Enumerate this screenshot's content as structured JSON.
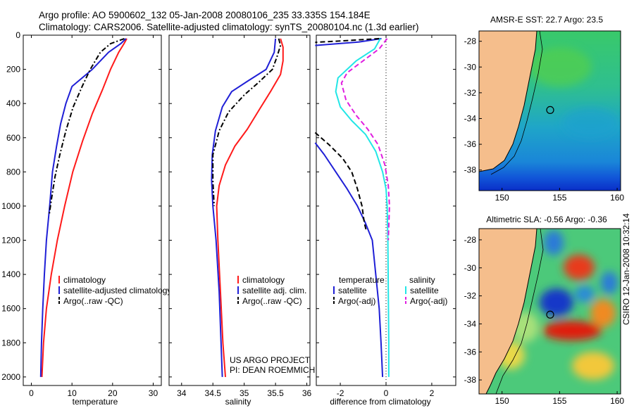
{
  "header": {
    "title_line1": "Argo profile: AO 5900602_132 05-Jan-2008 20080106_235 33.335S 154.184E",
    "title_line2": "Climatology: CARS2006. Satellite-adjusted climatology: synTS_20080104.nc (1.3d earlier)"
  },
  "project_note": {
    "line1": "US ARGO PROJECT",
    "line2": "PI: DEAN ROEMMICH"
  },
  "side_label": "CSIRO 12-Jan-2008 10:32:14",
  "colors": {
    "red": "#ff1a1a",
    "blue": "#1f1fd6",
    "black": "#000000",
    "cyan": "#22e6e6",
    "magenta": "#e01ee0",
    "land": "#f5be8c"
  },
  "chart_data": [
    {
      "type": "line",
      "id": "temperature",
      "xlabel": "temperature",
      "ylabel": "",
      "xlim": [
        -2,
        32
      ],
      "ylim": [
        2050,
        0
      ],
      "xticks": [
        "0",
        "10",
        "20",
        "30"
      ],
      "xtick_values": [
        0,
        10,
        20,
        30
      ],
      "yticks": [
        "0",
        "200",
        "400",
        "600",
        "800",
        "1000",
        "1200",
        "1400",
        "1600",
        "1800",
        "2000"
      ],
      "ytick_values": [
        0,
        200,
        400,
        600,
        800,
        1000,
        1200,
        1400,
        1600,
        1800,
        2000
      ],
      "legend": [
        "climatology",
        "satellite-adjusted climatology",
        "Argo(..raw -QC)"
      ],
      "series": [
        {
          "name": "climatology",
          "color": "red",
          "dash": "",
          "points": [
            [
              23.5,
              20
            ],
            [
              22.8,
              50
            ],
            [
              21.5,
              100
            ],
            [
              19.5,
              200
            ],
            [
              17.5,
              320
            ],
            [
              15,
              460
            ],
            [
              12.6,
              620
            ],
            [
              10.2,
              800
            ],
            [
              8.2,
              1000
            ],
            [
              6.4,
              1200
            ],
            [
              4.9,
              1400
            ],
            [
              3.7,
              1600
            ],
            [
              3,
              1800
            ],
            [
              2.6,
              2000
            ]
          ]
        },
        {
          "name": "satellite-adjusted climatology",
          "color": "blue",
          "dash": "",
          "points": [
            [
              23.3,
              20
            ],
            [
              22,
              50
            ],
            [
              19,
              100
            ],
            [
              15,
              200
            ],
            [
              10,
              300
            ],
            [
              8.5,
              400
            ],
            [
              7.2,
              520
            ],
            [
              6.2,
              650
            ],
            [
              5.2,
              800
            ],
            [
              4.5,
              1000
            ],
            [
              3.7,
              1200
            ],
            [
              3.2,
              1400
            ],
            [
              2.8,
              1600
            ],
            [
              2.5,
              1800
            ],
            [
              2.3,
              2000
            ]
          ]
        },
        {
          "name": "Argo(..raw -QC)",
          "color": "black",
          "dash": "7 3 2 3",
          "points": [
            [
              22.9,
              20
            ],
            [
              19.5,
              50
            ],
            [
              17,
              100
            ],
            [
              14.5,
              200
            ],
            [
              12.5,
              300
            ],
            [
              10.3,
              420
            ],
            [
              8.5,
              560
            ],
            [
              7,
              700
            ],
            [
              5.8,
              830
            ],
            [
              5,
              950
            ],
            [
              4.4,
              1050
            ]
          ]
        }
      ]
    },
    {
      "type": "line",
      "id": "salinity",
      "xlabel": "salinity",
      "ylabel": "",
      "xlim": [
        33.8,
        36.05
      ],
      "ylim": [
        2050,
        0
      ],
      "xticks": [
        "34",
        "34.5",
        "35",
        "35.5",
        "36"
      ],
      "xtick_values": [
        34,
        34.5,
        35,
        35.5,
        36
      ],
      "legend": [
        "climatology",
        "satellite adj. clim.",
        "Argo(..raw -QC)"
      ],
      "series": [
        {
          "name": "climatology",
          "color": "red",
          "dash": "",
          "points": [
            [
              35.58,
              20
            ],
            [
              35.62,
              70
            ],
            [
              35.62,
              150
            ],
            [
              35.58,
              230
            ],
            [
              35.42,
              330
            ],
            [
              35.25,
              430
            ],
            [
              35.05,
              550
            ],
            [
              34.85,
              650
            ],
            [
              34.7,
              760
            ],
            [
              34.6,
              880
            ],
            [
              34.56,
              1000
            ],
            [
              34.58,
              1200
            ],
            [
              34.62,
              1500
            ],
            [
              34.66,
              1800
            ],
            [
              34.7,
              2000
            ]
          ]
        },
        {
          "name": "satellite adj. clim.",
          "color": "blue",
          "dash": "",
          "points": [
            [
              35.5,
              20
            ],
            [
              35.48,
              100
            ],
            [
              35.35,
              200
            ],
            [
              35.05,
              270
            ],
            [
              34.8,
              330
            ],
            [
              34.65,
              420
            ],
            [
              34.54,
              560
            ],
            [
              34.49,
              700
            ],
            [
              34.48,
              850
            ],
            [
              34.5,
              1000
            ],
            [
              34.55,
              1200
            ],
            [
              34.6,
              1500
            ],
            [
              34.63,
              1800
            ],
            [
              34.65,
              2000
            ]
          ]
        },
        {
          "name": "Argo(..raw -QC)",
          "color": "black",
          "dash": "7 3 2 3",
          "points": [
            [
              35.55,
              20
            ],
            [
              35.58,
              60
            ],
            [
              35.52,
              130
            ],
            [
              35.45,
              200
            ],
            [
              35.22,
              280
            ],
            [
              35,
              350
            ],
            [
              34.75,
              450
            ],
            [
              34.6,
              560
            ],
            [
              34.5,
              700
            ],
            [
              34.5,
              850
            ],
            [
              34.52,
              1000
            ]
          ]
        }
      ]
    },
    {
      "type": "line",
      "id": "difference",
      "xlabel": "difference from climatology",
      "ylabel": "",
      "xlim": [
        -3.05,
        3.05
      ],
      "ylim": [
        2050,
        0
      ],
      "xticks": [
        "-2",
        "0",
        "2"
      ],
      "xtick_values": [
        -2,
        0,
        2
      ],
      "legend_headers": [
        "temperature",
        "salinity"
      ],
      "legend": [
        "satellite",
        "Argo(-adj)",
        "satellite",
        "Argo(-adj)"
      ],
      "series": [
        {
          "name": "temperature satellite (top)",
          "color": "blue",
          "dash": "",
          "points": [
            [
              -0.2,
              20
            ],
            [
              -1.2,
              40
            ],
            [
              -3.1,
              60
            ]
          ]
        },
        {
          "name": "temperature Argo (top)",
          "color": "black",
          "dash": "7 4",
          "points": [
            [
              -0.3,
              20
            ],
            [
              -1.5,
              30
            ],
            [
              -3.1,
              42
            ]
          ]
        },
        {
          "name": "temperature satellite",
          "color": "blue",
          "dash": "",
          "points": [
            [
              -3.1,
              630
            ],
            [
              -2.7,
              700
            ],
            [
              -2.2,
              800
            ],
            [
              -1.7,
              900
            ],
            [
              -1.25,
              1000
            ],
            [
              -0.9,
              1100
            ],
            [
              -0.6,
              1200
            ],
            [
              -0.45,
              1400
            ],
            [
              -0.3,
              1600
            ],
            [
              -0.22,
              1800
            ],
            [
              -0.15,
              2000
            ]
          ]
        },
        {
          "name": "temperature Argo",
          "color": "black",
          "dash": "7 4",
          "points": [
            [
              -3.1,
              570
            ],
            [
              -2.5,
              640
            ],
            [
              -1.9,
              720
            ],
            [
              -1.5,
              800
            ],
            [
              -1.25,
              900
            ],
            [
              -1.05,
              1000
            ],
            [
              -0.95,
              1100
            ],
            [
              -0.85,
              1150
            ]
          ]
        },
        {
          "name": "salinity satellite",
          "color": "cyan",
          "dash": "",
          "points": [
            [
              -0.25,
              20
            ],
            [
              -0.5,
              80
            ],
            [
              -1.3,
              150
            ],
            [
              -2.1,
              250
            ],
            [
              -2.2,
              330
            ],
            [
              -2,
              420
            ],
            [
              -1.5,
              500
            ],
            [
              -0.9,
              580
            ],
            [
              -0.45,
              680
            ],
            [
              -0.15,
              800
            ],
            [
              0,
              900
            ],
            [
              0.05,
              1000
            ],
            [
              0.08,
              1200
            ],
            [
              0.1,
              1500
            ],
            [
              0.12,
              1800
            ],
            [
              0.12,
              2000
            ]
          ]
        },
        {
          "name": "salinity Argo",
          "color": "magenta",
          "dash": "7 4",
          "points": [
            [
              0.05,
              20
            ],
            [
              -0.3,
              80
            ],
            [
              -1,
              150
            ],
            [
              -1.7,
              220
            ],
            [
              -1.95,
              280
            ],
            [
              -1.75,
              380
            ],
            [
              -1.3,
              470
            ],
            [
              -0.8,
              550
            ],
            [
              -0.35,
              640
            ],
            [
              -0.05,
              760
            ],
            [
              0.1,
              880
            ],
            [
              0.15,
              1000
            ],
            [
              0.1,
              1200
            ]
          ]
        }
      ]
    },
    {
      "type": "heatmap",
      "id": "sst_map",
      "title": "AMSR-E SST: 22.7 Argo: 23.5",
      "xticks": [
        "150",
        "155",
        "160"
      ],
      "xtick_values": [
        150,
        155,
        160
      ],
      "yticks": [
        "-28",
        "-30",
        "-32",
        "-34",
        "-36",
        "-38"
      ],
      "ytick_values": [
        -28,
        -30,
        -32,
        -34,
        -36,
        -38
      ],
      "xlim": [
        148,
        160.3
      ],
      "ylim": [
        -39.6,
        -27.2
      ],
      "marker": [
        154.18,
        -33.34
      ]
    },
    {
      "type": "heatmap",
      "id": "sla_map",
      "title": "Altimetric SLA: -0.56 Argo: -0.36",
      "xticks": [
        "150",
        "155",
        "160"
      ],
      "xtick_values": [
        150,
        155,
        160
      ],
      "yticks": [
        "-28",
        "-30",
        "-32",
        "-34",
        "-36",
        "-38"
      ],
      "ytick_values": [
        -28,
        -30,
        -32,
        -34,
        -36,
        -38
      ],
      "xlim": [
        148,
        160.3
      ],
      "ylim": [
        -39,
        -27.2
      ],
      "marker": [
        154.18,
        -33.34
      ]
    }
  ]
}
